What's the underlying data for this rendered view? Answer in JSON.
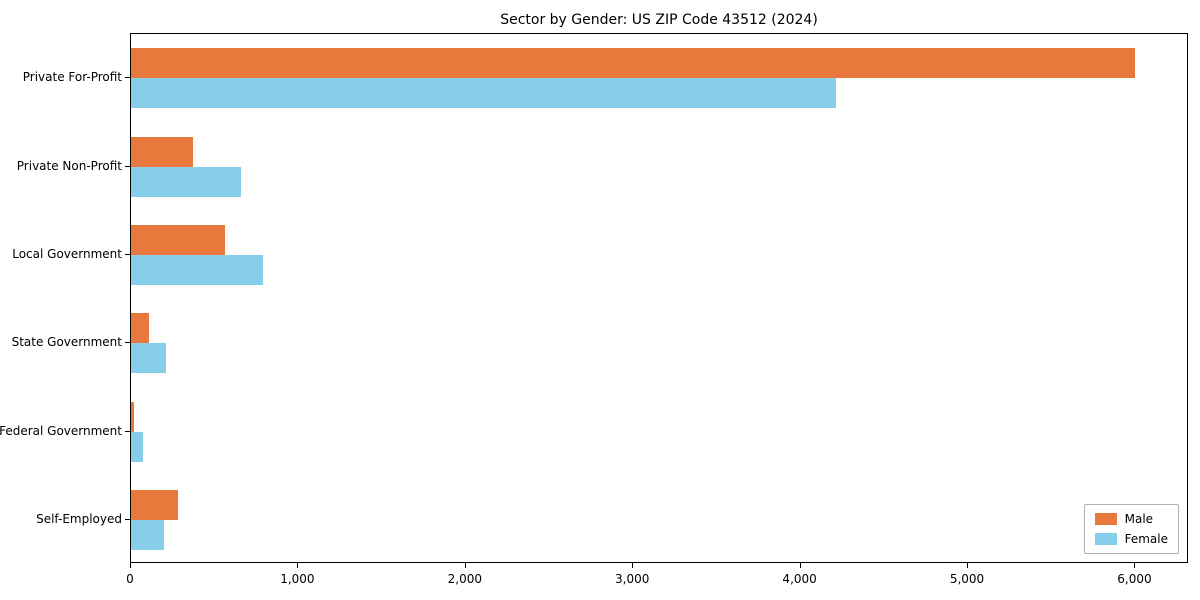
{
  "title": "Sector by Gender: US ZIP Code 43512 (2024)",
  "chart_data": {
    "type": "bar",
    "orientation": "horizontal",
    "title": "Sector by Gender: US ZIP Code 43512 (2024)",
    "categories": [
      "Private For-Profit",
      "Private Non-Profit",
      "Local Government",
      "State Government",
      "Federal Government",
      "Self-Employed"
    ],
    "series": [
      {
        "name": "Male",
        "color": "#e8783c",
        "values": [
          6000,
          370,
          560,
          110,
          15,
          280
        ]
      },
      {
        "name": "Female",
        "color": "#87ceeb",
        "values": [
          4210,
          660,
          790,
          210,
          70,
          200
        ]
      }
    ],
    "xlim": [
      0,
      6320
    ],
    "xticks": [
      0,
      1000,
      2000,
      3000,
      4000,
      5000,
      6000
    ],
    "grid": false,
    "legend_position": "lower-right",
    "xlabel": "",
    "ylabel": ""
  }
}
